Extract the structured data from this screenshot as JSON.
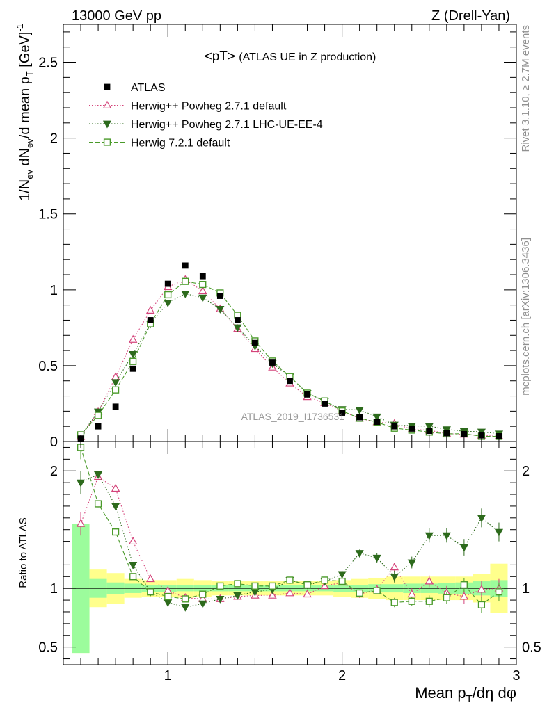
{
  "header": {
    "left": "13000 GeV pp",
    "right": "Z (Drell-Yan)"
  },
  "side_labels": {
    "rivet": "Rivet 3.1.10, ≥ 2.7M events",
    "mcplots": "mcplots.cern.ch [arXiv:1306.3436]"
  },
  "chart_data": {
    "type": "scatter",
    "title": "<pT> (ATLAS UE in Z production)",
    "analysis_label": "ATLAS_2019_I1736531",
    "xlabel": "Mean p_T/dη dφ",
    "ylabel": "1/N_ev dN_ev/d mean p_T [GeV]^-1",
    "ratio_ylabel": "Ratio to ATLAS",
    "xlim": [
      0.4,
      3.0
    ],
    "ylim": [
      0,
      2.75
    ],
    "ratio_ylim": [
      0.35,
      2.25
    ],
    "x_ticks": [
      1,
      2,
      3
    ],
    "y_ticks": [
      0,
      0.5,
      1,
      1.5,
      2,
      2.5
    ],
    "ratio_ticks": [
      0.5,
      1,
      2
    ],
    "x": [
      0.5,
      0.6,
      0.7,
      0.8,
      0.9,
      1.0,
      1.1,
      1.2,
      1.3,
      1.4,
      1.5,
      1.6,
      1.7,
      1.8,
      1.9,
      2.0,
      2.1,
      2.2,
      2.3,
      2.4,
      2.5,
      2.6,
      2.7,
      2.8,
      2.9
    ],
    "data": {
      "name": "ATLAS",
      "values": [
        0.02,
        0.1,
        0.23,
        0.48,
        0.8,
        1.04,
        1.16,
        1.09,
        0.96,
        0.8,
        0.65,
        0.52,
        0.4,
        0.31,
        0.25,
        0.19,
        0.16,
        0.13,
        0.1,
        0.085,
        0.07,
        0.055,
        0.05,
        0.04,
        0.035
      ],
      "band_stat": [
        0.55,
        0.08,
        0.05,
        0.04,
        0.03,
        0.03,
        0.025,
        0.025,
        0.025,
        0.025,
        0.025,
        0.025,
        0.025,
        0.025,
        0.025,
        0.03,
        0.03,
        0.035,
        0.035,
        0.04,
        0.04,
        0.045,
        0.05,
        0.06,
        0.07
      ],
      "band_total": [
        0.55,
        0.16,
        0.13,
        0.08,
        0.07,
        0.07,
        0.08,
        0.07,
        0.06,
        0.06,
        0.06,
        0.06,
        0.06,
        0.06,
        0.06,
        0.07,
        0.08,
        0.09,
        0.1,
        0.1,
        0.1,
        0.1,
        0.1,
        0.12,
        0.21
      ]
    },
    "series": [
      {
        "name": "Herwig++ Powheg 2.7.1 default",
        "color": "#d4437a",
        "marker": "triangle-up-open",
        "dash": "1.5,2.5",
        "ratio": [
          1.55,
          1.95,
          1.85,
          1.4,
          1.08,
          0.98,
          0.92,
          0.91,
          0.91,
          0.93,
          0.94,
          0.94,
          0.96,
          0.95,
          1.02,
          1.05,
          0.95,
          0.99,
          1.18,
          0.95,
          1.06,
          0.96,
          0.93,
          0.99,
          1.0
        ],
        "err": [
          0.1,
          0.03,
          0.02,
          0.02,
          0.01,
          0.01,
          0.01,
          0.01,
          0.01,
          0.01,
          0.01,
          0.01,
          0.02,
          0.02,
          0.02,
          0.02,
          0.03,
          0.04,
          0.04,
          0.05,
          0.05,
          0.06,
          0.06,
          0.07,
          0.08
        ]
      },
      {
        "name": "Herwig++ Powheg 2.7.1 LHC-UE-EE-4",
        "color": "#2d6a1c",
        "marker": "triangle-down-filled",
        "dash": "1.5,2.5",
        "ratio": [
          1.9,
          1.97,
          1.7,
          1.2,
          0.97,
          0.88,
          0.84,
          0.87,
          0.91,
          0.94,
          0.97,
          0.99,
          1.07,
          1.03,
          1.06,
          1.12,
          1.3,
          1.26,
          1.1,
          1.22,
          1.45,
          1.45,
          1.35,
          1.6,
          1.48
        ],
        "err": [
          0.1,
          0.03,
          0.02,
          0.02,
          0.01,
          0.01,
          0.01,
          0.01,
          0.01,
          0.01,
          0.01,
          0.01,
          0.02,
          0.02,
          0.02,
          0.03,
          0.03,
          0.04,
          0.05,
          0.05,
          0.06,
          0.06,
          0.07,
          0.08,
          0.08
        ]
      },
      {
        "name": "Herwig 7.2.1 default",
        "color": "#4a9a2a",
        "marker": "square-open",
        "dash": "6,3",
        "ratio": [
          2.2,
          1.72,
          1.48,
          1.1,
          0.97,
          0.93,
          0.91,
          0.95,
          1.02,
          1.04,
          1.02,
          1.02,
          1.07,
          1.03,
          1.07,
          1.06,
          0.96,
          0.98,
          0.88,
          0.89,
          0.89,
          0.92,
          1.03,
          0.86,
          0.97
        ],
        "err": [
          0.1,
          0.03,
          0.02,
          0.02,
          0.01,
          0.01,
          0.01,
          0.01,
          0.01,
          0.01,
          0.01,
          0.01,
          0.02,
          0.02,
          0.02,
          0.02,
          0.03,
          0.03,
          0.04,
          0.04,
          0.05,
          0.05,
          0.06,
          0.07,
          0.08
        ]
      }
    ]
  }
}
